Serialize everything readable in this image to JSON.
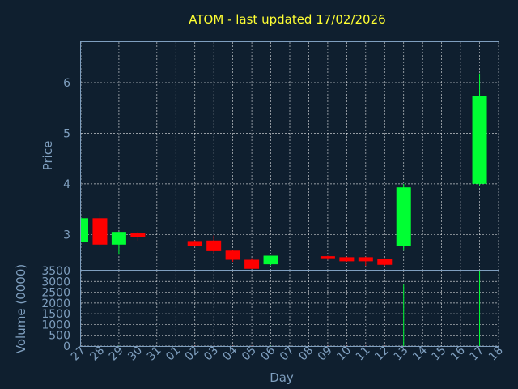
{
  "chart_data": {
    "type": "candlestick",
    "title": "ATOM - last updated 17/02/2026",
    "xlabel": "Day",
    "price_panel": {
      "ylabel": "Price",
      "ylim": [
        2.3,
        6.8
      ],
      "yticks": [
        3,
        4,
        5,
        6
      ]
    },
    "volume_panel": {
      "ylabel": "Volume (0000)",
      "ylim": [
        0,
        3500
      ],
      "yticks": [
        0,
        500,
        1000,
        1500,
        2000,
        2500,
        3000,
        3500
      ]
    },
    "x_tick_labels": [
      "27",
      "28",
      "29",
      "30",
      "31",
      "01",
      "02",
      "03",
      "04",
      "05",
      "06",
      "07",
      "08",
      "09",
      "10",
      "11",
      "12",
      "13",
      "14",
      "15",
      "16",
      "17",
      "18"
    ],
    "up_color": "#00ff33",
    "down_color": "#ff0000",
    "grid": true,
    "candles": [
      {
        "day": "27",
        "open": 2.85,
        "high": 3.33,
        "low": 2.85,
        "close": 3.32,
        "volume": 0
      },
      {
        "day": "28",
        "open": 3.32,
        "high": 3.45,
        "low": 2.75,
        "close": 2.8,
        "volume": 20
      },
      {
        "day": "29",
        "open": 2.8,
        "high": 3.05,
        "low": 2.6,
        "close": 3.05,
        "volume": 10
      },
      {
        "day": "30",
        "open": 3.02,
        "high": 3.05,
        "low": 2.88,
        "close": 2.95,
        "volume": 10
      },
      {
        "day": "02",
        "open": 2.87,
        "high": 2.88,
        "low": 2.76,
        "close": 2.78,
        "volume": 10
      },
      {
        "day": "03",
        "open": 2.88,
        "high": 2.98,
        "low": 2.63,
        "close": 2.67,
        "volume": 10
      },
      {
        "day": "04",
        "open": 2.68,
        "high": 2.7,
        "low": 2.46,
        "close": 2.5,
        "volume": 10
      },
      {
        "day": "05",
        "open": 2.5,
        "high": 2.53,
        "low": 2.32,
        "close": 2.32,
        "volume": 10
      },
      {
        "day": "06",
        "open": 2.41,
        "high": 2.58,
        "low": 2.39,
        "close": 2.58,
        "volume": 10
      },
      {
        "day": "09",
        "open": 2.57,
        "high": 2.58,
        "low": 2.5,
        "close": 2.53,
        "volume": 10
      },
      {
        "day": "10",
        "open": 2.55,
        "high": 2.56,
        "low": 2.46,
        "close": 2.47,
        "volume": 10
      },
      {
        "day": "11",
        "open": 2.55,
        "high": 2.56,
        "low": 2.38,
        "close": 2.47,
        "volume": 10
      },
      {
        "day": "12",
        "open": 2.52,
        "high": 2.53,
        "low": 2.38,
        "close": 2.4,
        "volume": 10
      },
      {
        "day": "13",
        "open": 2.78,
        "high": 4.0,
        "low": 2.68,
        "close": 3.93,
        "volume": 2850
      },
      {
        "day": "17",
        "open": 4.0,
        "high": 6.18,
        "low": 3.97,
        "close": 5.73,
        "volume": 3500
      }
    ]
  }
}
